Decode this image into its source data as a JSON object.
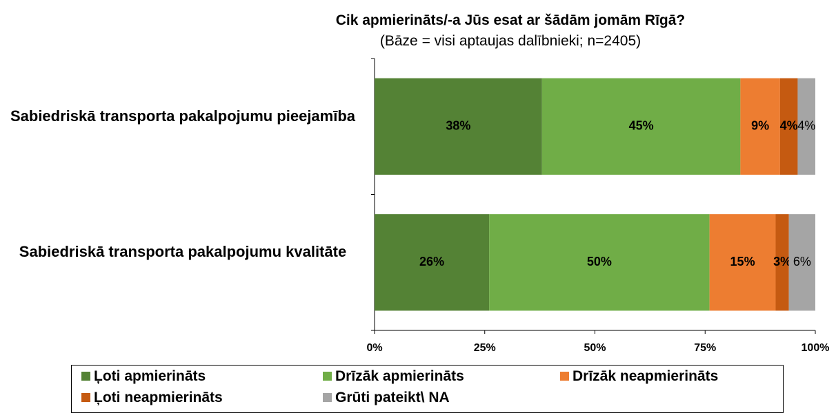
{
  "chart_data": {
    "type": "stacked-bar-horizontal",
    "title": "Cik apmierināts/-a Jūs esat ar šādām jomām Rīgā?",
    "subtitle": "(Bāze = visi aptaujas dalībnieki; n=2405)",
    "categories": [
      "Sabiedriskā transporta pakalpojumu pieejamība",
      "Sabiedriskā transporta pakalpojumu kvalitāte"
    ],
    "series": [
      {
        "name": "Ļoti apmierināts",
        "color": "#548235",
        "values": [
          38,
          26
        ],
        "value_labels": [
          "38%",
          "26%"
        ]
      },
      {
        "name": "Drīzāk apmierināts",
        "color": "#70ad47",
        "values": [
          45,
          50
        ],
        "value_labels": [
          "45%",
          "50%"
        ]
      },
      {
        "name": "Drīzāk neapmierināts",
        "color": "#ed7d31",
        "values": [
          9,
          15
        ],
        "value_labels": [
          "9%",
          "15%"
        ]
      },
      {
        "name": "Ļoti neapmierināts",
        "color": "#c55a11",
        "values": [
          4,
          3
        ],
        "value_labels": [
          "4%",
          "3%"
        ]
      },
      {
        "name": "Grūti pateikt\\ NA",
        "color": "#a5a5a5",
        "values": [
          4,
          6
        ],
        "value_labels": [
          "4%",
          "6%"
        ]
      }
    ],
    "xlim": [
      0,
      100
    ],
    "xticks": [
      {
        "value": 0,
        "label": "0%"
      },
      {
        "value": 25,
        "label": "25%"
      },
      {
        "value": 50,
        "label": "50%"
      },
      {
        "value": 75,
        "label": "75%"
      },
      {
        "value": 100,
        "label": "100%"
      }
    ],
    "legend": "bottom",
    "grid": false
  }
}
